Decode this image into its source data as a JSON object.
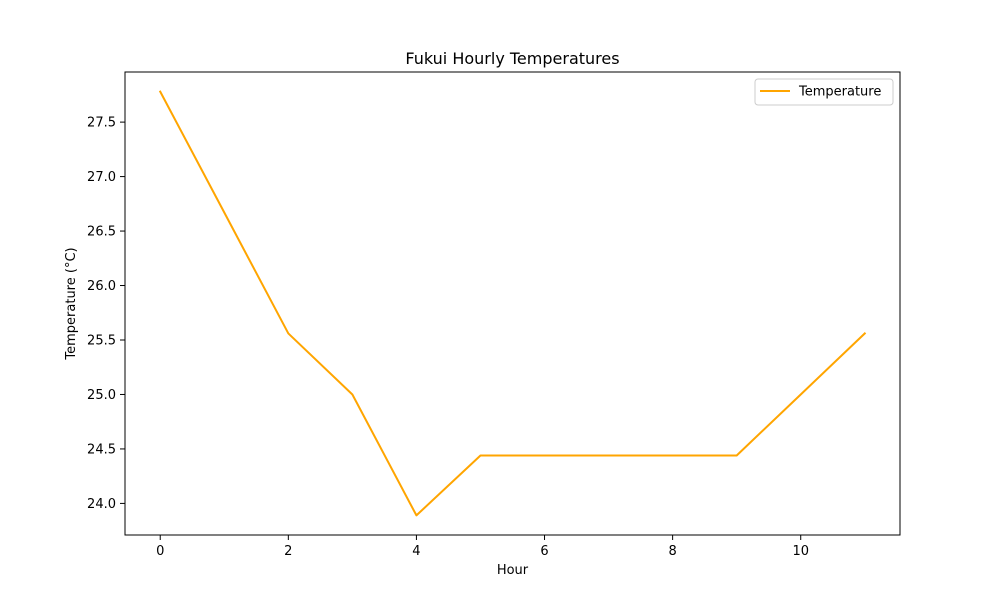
{
  "chart_data": {
    "type": "line",
    "title": "Fukui Hourly Temperatures",
    "xlabel": "Hour",
    "ylabel": "Temperature (°C)",
    "x": [
      0,
      1,
      2,
      3,
      4,
      5,
      6,
      7,
      8,
      9,
      10,
      11
    ],
    "series": [
      {
        "name": "Temperature",
        "color": "#ffa500",
        "values": [
          27.78,
          26.67,
          25.56,
          25.0,
          23.89,
          24.44,
          24.44,
          24.44,
          24.44,
          24.44,
          25.0,
          25.56
        ]
      }
    ],
    "xlim": [
      -0.55,
      11.55
    ],
    "ylim": [
      23.71,
      27.96
    ],
    "xticks": [
      0,
      2,
      4,
      6,
      8,
      10
    ],
    "xtick_labels": [
      "0",
      "2",
      "4",
      "6",
      "8",
      "10"
    ],
    "yticks": [
      24.0,
      24.5,
      25.0,
      25.5,
      26.0,
      26.5,
      27.0,
      27.5
    ],
    "ytick_labels": [
      "24.0",
      "24.5",
      "25.0",
      "25.5",
      "26.0",
      "26.5",
      "27.0",
      "27.5"
    ],
    "grid": false,
    "legend_position": "top-right"
  }
}
